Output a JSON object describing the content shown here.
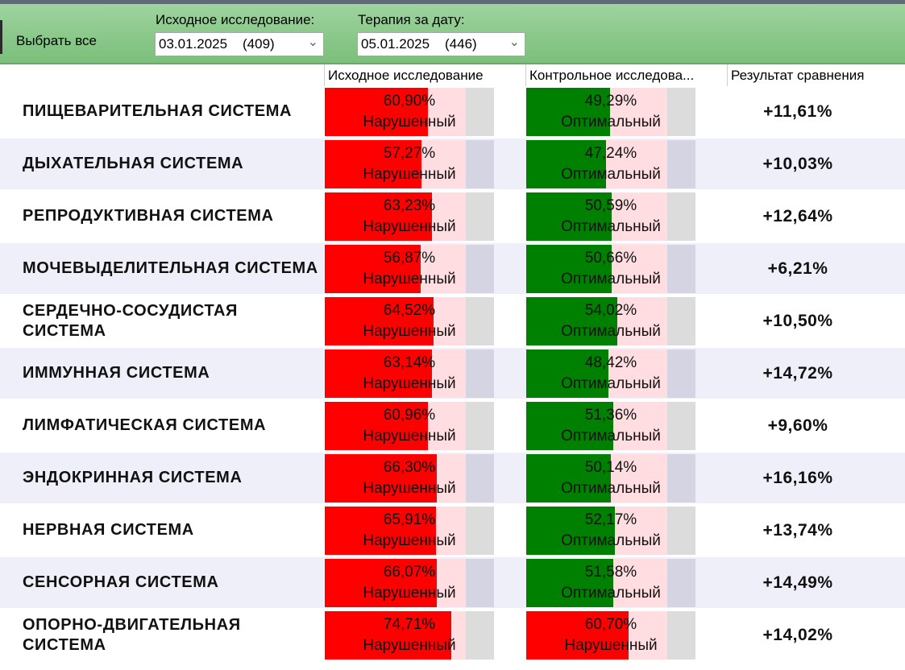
{
  "toolbar": {
    "select_all": "Выбрать все",
    "baseline_label": "Исходное исследование:",
    "baseline_date": "03.01.2025",
    "baseline_count": "(409)",
    "therapy_label": "Терапия за дату:",
    "therapy_date": "05.01.2025",
    "therapy_count": "(446)"
  },
  "columns": {
    "baseline": "Исходное исследование",
    "control": "Контрольное исследова...",
    "result": "Результат сравнения"
  },
  "colors": {
    "impaired": "#ff0000",
    "impaired_bg": "#ffdde0",
    "optimal": "#008000",
    "optimal_bg": "#ffdde0",
    "row_alt": "#efeff9",
    "toolbar": "#8fcb8f"
  },
  "rows": [
    {
      "name": "ПИЩЕВАРИТЕЛЬНАЯ СИСТЕМА",
      "baseline": {
        "value": "60,90%",
        "status": "Нарушенный",
        "pct": 60.9
      },
      "control": {
        "value": "49,29%",
        "status": "Оптимальный",
        "pct": 49.29
      },
      "result": "+11,61%"
    },
    {
      "name": "ДЫХАТЕЛЬНАЯ СИСТЕМА",
      "baseline": {
        "value": "57,27%",
        "status": "Нарушенный",
        "pct": 57.27
      },
      "control": {
        "value": "47,24%",
        "status": "Оптимальный",
        "pct": 47.24
      },
      "result": "+10,03%"
    },
    {
      "name": "РЕПРОДУКТИВНАЯ СИСТЕМА",
      "baseline": {
        "value": "63,23%",
        "status": "Нарушенный",
        "pct": 63.23
      },
      "control": {
        "value": "50,59%",
        "status": "Оптимальный",
        "pct": 50.59
      },
      "result": "+12,64%"
    },
    {
      "name": "МОЧЕВЫДЕЛИТЕЛЬНАЯ СИСТЕМА",
      "baseline": {
        "value": "56,87%",
        "status": "Нарушенный",
        "pct": 56.87
      },
      "control": {
        "value": "50,66%",
        "status": "Оптимальный",
        "pct": 50.66
      },
      "result": "+6,21%"
    },
    {
      "name": "СЕРДЕЧНО-СОСУДИСТАЯ СИСТЕМА",
      "baseline": {
        "value": "64,52%",
        "status": "Нарушенный",
        "pct": 64.52
      },
      "control": {
        "value": "54,02%",
        "status": "Оптимальный",
        "pct": 54.02
      },
      "result": "+10,50%"
    },
    {
      "name": "ИММУННАЯ СИСТЕМА",
      "baseline": {
        "value": "63,14%",
        "status": "Нарушенный",
        "pct": 63.14
      },
      "control": {
        "value": "48,42%",
        "status": "Оптимальный",
        "pct": 48.42
      },
      "result": "+14,72%"
    },
    {
      "name": "ЛИМФАТИЧЕСКАЯ СИСТЕМА",
      "baseline": {
        "value": "60,96%",
        "status": "Нарушенный",
        "pct": 60.96
      },
      "control": {
        "value": "51,36%",
        "status": "Оптимальный",
        "pct": 51.36
      },
      "result": "+9,60%"
    },
    {
      "name": "ЭНДОКРИННАЯ СИСТЕМА",
      "baseline": {
        "value": "66,30%",
        "status": "Нарушенный",
        "pct": 66.3
      },
      "control": {
        "value": "50,14%",
        "status": "Оптимальный",
        "pct": 50.14
      },
      "result": "+16,16%"
    },
    {
      "name": "НЕРВНАЯ СИСТЕМА",
      "baseline": {
        "value": "65,91%",
        "status": "Нарушенный",
        "pct": 65.91
      },
      "control": {
        "value": "52,17%",
        "status": "Оптимальный",
        "pct": 52.17
      },
      "result": "+13,74%"
    },
    {
      "name": "СЕНСОРНАЯ СИСТЕМА",
      "baseline": {
        "value": "66,07%",
        "status": "Нарушенный",
        "pct": 66.07
      },
      "control": {
        "value": "51,58%",
        "status": "Оптимальный",
        "pct": 51.58
      },
      "result": "+14,49%"
    },
    {
      "name": "ОПОРНО-ДВИГАТЕЛЬНАЯ СИСТЕМА",
      "baseline": {
        "value": "74,71%",
        "status": "Нарушенный",
        "pct": 74.71
      },
      "control": {
        "value": "60,70%",
        "status": "Нарушенный",
        "pct": 60.7
      },
      "result": "+14,02%"
    }
  ]
}
